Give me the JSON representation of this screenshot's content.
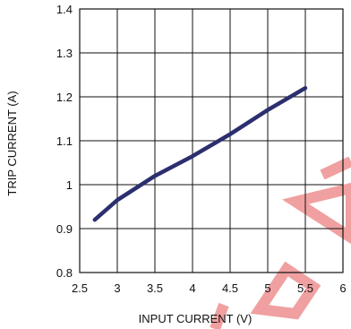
{
  "chart_data": {
    "type": "line",
    "title": "",
    "xlabel": "INPUT CURRENT (V)",
    "ylabel": "TRIP CURRENT (A)",
    "xlim": [
      2.5,
      6
    ],
    "ylim": [
      0.8,
      1.4
    ],
    "x_ticks": [
      "2.5",
      "3",
      "3.5",
      "4",
      "4.5",
      "5",
      "5.5",
      "6"
    ],
    "y_ticks": [
      "0.8",
      "0.9",
      "1",
      "1.1",
      "1.2",
      "1.3",
      "1.4"
    ],
    "x_tick_values": [
      2.5,
      3,
      3.5,
      4,
      4.5,
      5,
      5.5,
      6
    ],
    "y_tick_values": [
      0.8,
      0.9,
      1.0,
      1.1,
      1.2,
      1.3,
      1.4
    ],
    "grid": true,
    "legend": "none",
    "series": [
      {
        "color": "#2b2f6e",
        "x": [
          2.7,
          3.0,
          3.5,
          4.0,
          4.5,
          5.0,
          5.5
        ],
        "y": [
          0.92,
          0.965,
          1.02,
          1.065,
          1.115,
          1.17,
          1.22
        ]
      }
    ],
    "watermark_color": "#f0a0a0"
  }
}
